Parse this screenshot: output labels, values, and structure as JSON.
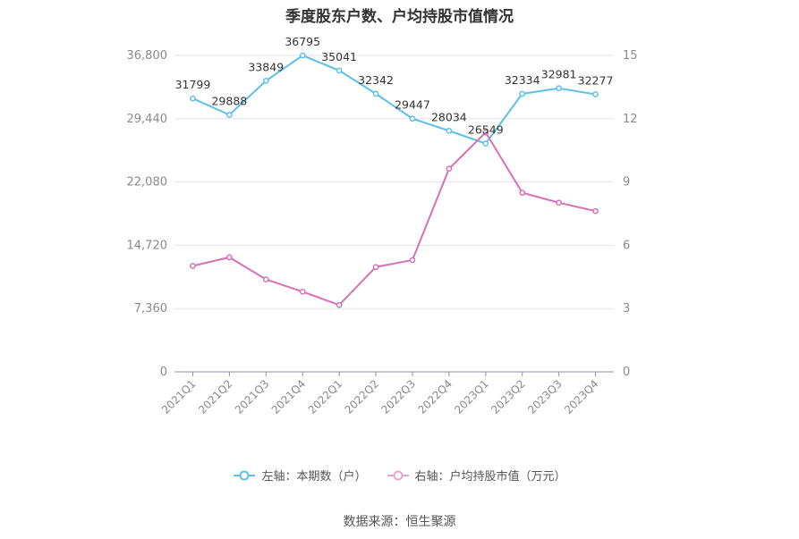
{
  "chart_data": {
    "type": "line",
    "title": "季度股东户数、户均持股市值情况",
    "categories": [
      "2021Q1",
      "2021Q2",
      "2021Q3",
      "2021Q4",
      "2022Q1",
      "2022Q2",
      "2022Q3",
      "2022Q4",
      "2023Q1",
      "2023Q2",
      "2023Q3",
      "2023Q4"
    ],
    "left_axis": {
      "ticks": [
        "0",
        "7,360",
        "14,720",
        "22,080",
        "29,440",
        "36,800"
      ],
      "ylim": [
        0,
        36800
      ]
    },
    "right_axis": {
      "ticks": [
        "0",
        "3",
        "6",
        "9",
        "12",
        "15"
      ],
      "ylim": [
        0,
        15
      ]
    },
    "series": [
      {
        "name": "左轴：本期数（户）",
        "axis": "left",
        "color": "#5bc0eb",
        "values": [
          31799,
          29888,
          33849,
          36795,
          35041,
          32342,
          29447,
          28034,
          26549,
          32334,
          32981,
          32277
        ],
        "labels": [
          "31799",
          "29888",
          "33849",
          "36795",
          "35041",
          "32342",
          "29447",
          "28034",
          "26549",
          "32334",
          "32981",
          "32277"
        ]
      },
      {
        "name": "右轴：户均持股市值（万元）",
        "axis": "right",
        "color": "#d672b3",
        "values": [
          5.02,
          5.43,
          4.38,
          3.8,
          3.17,
          4.97,
          5.3,
          9.63,
          11.35,
          8.49,
          8.02,
          7.62
        ]
      }
    ],
    "grid": true,
    "legend_position": "bottom"
  },
  "footer": {
    "source": "数据来源：恒生聚源"
  }
}
